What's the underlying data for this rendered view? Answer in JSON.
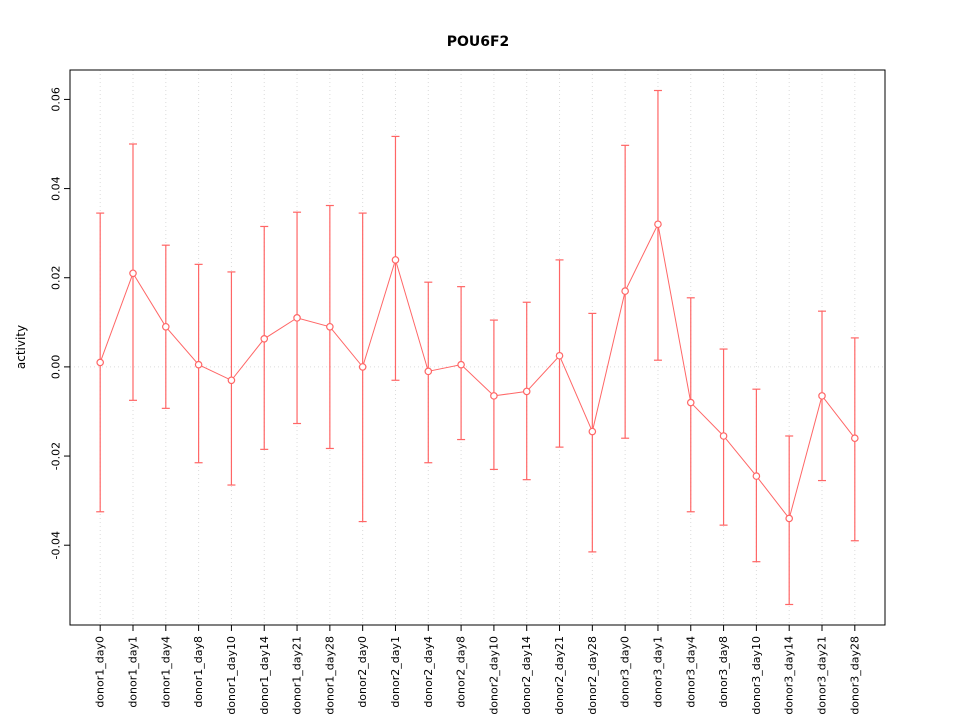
{
  "chart_data": {
    "type": "line",
    "title": "POU6F2",
    "ylabel": "activity",
    "xlabel": "",
    "grid": "vertical-dotted-plus-zero-line",
    "legend": "none",
    "ylim": [
      -0.0579,
      0.0666
    ],
    "yticks": [
      -0.04,
      -0.02,
      0.0,
      0.02,
      0.04,
      0.06
    ],
    "ytick_labels": [
      "-0.04",
      "-0.02",
      "0.00",
      "0.02",
      "0.04",
      "0.06"
    ],
    "categories": [
      "donor1_day0",
      "donor1_day1",
      "donor1_day4",
      "donor1_day8",
      "donor1_day10",
      "donor1_day14",
      "donor1_day21",
      "donor1_day28",
      "donor2_day0",
      "donor2_day1",
      "donor2_day4",
      "donor2_day8",
      "donor2_day10",
      "donor2_day14",
      "donor2_day21",
      "donor2_day28",
      "donor3_day0",
      "donor3_day1",
      "donor3_day4",
      "donor3_day8",
      "donor3_day10",
      "donor3_day14",
      "donor3_day21",
      "donor3_day28"
    ],
    "series": [
      {
        "name": "activity",
        "values": [
          0.001,
          0.021,
          0.009,
          0.0005,
          -0.003,
          0.0063,
          0.011,
          0.009,
          0.0,
          0.024,
          -0.001,
          0.0005,
          -0.0065,
          -0.0055,
          0.0025,
          -0.0145,
          0.017,
          0.032,
          -0.008,
          -0.0155,
          -0.0245,
          -0.034,
          -0.0065,
          -0.016
        ],
        "upper": [
          0.0345,
          0.05,
          0.0273,
          0.023,
          0.0213,
          0.0315,
          0.0347,
          0.0362,
          0.0345,
          0.0517,
          0.019,
          0.018,
          0.0105,
          0.0145,
          0.024,
          0.012,
          0.0497,
          0.062,
          0.0155,
          0.004,
          -0.005,
          -0.0155,
          0.0125,
          0.0065
        ],
        "lower": [
          -0.0325,
          -0.0075,
          -0.0093,
          -0.0215,
          -0.0265,
          -0.0185,
          -0.0127,
          -0.0183,
          -0.0347,
          -0.003,
          -0.0215,
          -0.0163,
          -0.023,
          -0.0253,
          -0.018,
          -0.0415,
          -0.016,
          0.0015,
          -0.0325,
          -0.0355,
          -0.0437,
          -0.0533,
          -0.0255,
          -0.039
        ]
      }
    ],
    "colors": {
      "line": "#FF6666",
      "grid": "#DBDBDB",
      "axis": "#000000",
      "background": "#FFFFFF"
    }
  }
}
